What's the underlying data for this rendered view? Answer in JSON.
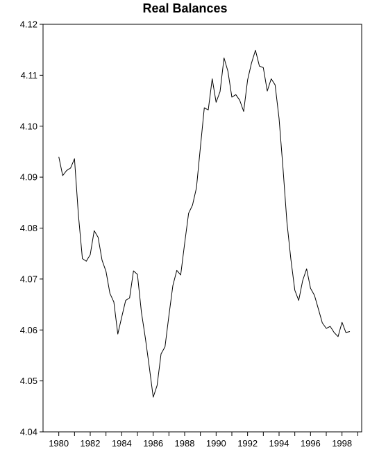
{
  "chart_data": {
    "type": "line",
    "title": "Real Balances",
    "xlabel": "",
    "ylabel": "",
    "xlim": [
      1979.0,
      1999.25
    ],
    "ylim": [
      4.04,
      4.12
    ],
    "y_ticks": [
      4.04,
      4.05,
      4.06,
      4.07,
      4.08,
      4.09,
      4.1,
      4.11,
      4.12
    ],
    "y_tick_labels": [
      "4.04",
      "4.05",
      "4.06",
      "4.07",
      "4.08",
      "4.09",
      "4.10",
      "4.11",
      "4.12"
    ],
    "x_tick_labels": [
      "1980",
      "1982",
      "1984",
      "1986",
      "1988",
      "1990",
      "1992",
      "1994",
      "1996",
      "1998"
    ],
    "x_tick_values": [
      1980,
      1982,
      1984,
      1986,
      1988,
      1990,
      1992,
      1994,
      1996,
      1998
    ],
    "grid": false,
    "series": [
      {
        "color": "#000000",
        "x": [
          1980.0,
          1980.25,
          1980.5,
          1980.75,
          1981.0,
          1981.25,
          1981.5,
          1981.75,
          1982.0,
          1982.25,
          1982.5,
          1982.75,
          1983.0,
          1983.25,
          1983.5,
          1983.75,
          1984.0,
          1984.25,
          1984.5,
          1984.75,
          1985.0,
          1985.25,
          1985.5,
          1985.75,
          1986.0,
          1986.25,
          1986.5,
          1986.75,
          1987.0,
          1987.25,
          1987.5,
          1987.75,
          1988.0,
          1988.25,
          1988.5,
          1988.75,
          1989.0,
          1989.25,
          1989.5,
          1989.75,
          1990.0,
          1990.25,
          1990.5,
          1990.75,
          1991.0,
          1991.25,
          1991.5,
          1991.75,
          1992.0,
          1992.25,
          1992.5,
          1992.75,
          1993.0,
          1993.25,
          1993.5,
          1993.75,
          1994.0,
          1994.25,
          1994.5,
          1994.75,
          1995.0,
          1995.25,
          1995.5,
          1995.75,
          1996.0,
          1996.25,
          1996.5,
          1996.75,
          1997.0,
          1997.25,
          1997.5,
          1997.75,
          1998.0,
          1998.25,
          1998.5
        ],
        "y": [
          4.094,
          4.0903,
          4.0913,
          4.0918,
          4.0936,
          4.0825,
          4.074,
          4.0735,
          4.0748,
          4.0795,
          4.0782,
          4.0737,
          4.0715,
          4.0672,
          4.0655,
          4.0592,
          4.0625,
          4.0658,
          4.0663,
          4.0716,
          4.0709,
          4.0635,
          4.0585,
          4.0528,
          4.0468,
          4.0491,
          4.0553,
          4.0567,
          4.0628,
          4.0687,
          4.0717,
          4.0708,
          4.077,
          4.0829,
          4.0845,
          4.0879,
          4.0959,
          4.1036,
          4.1032,
          4.1093,
          4.1047,
          4.1068,
          4.1134,
          4.1108,
          4.1057,
          4.1062,
          4.1051,
          4.1029,
          4.1091,
          4.1124,
          4.1149,
          4.1118,
          4.1115,
          4.1069,
          4.1093,
          4.1081,
          4.1015,
          4.0917,
          4.0812,
          4.0739,
          4.0678,
          4.0658,
          4.0697,
          4.072,
          4.0682,
          4.0668,
          4.0641,
          4.0614,
          4.0603,
          4.0607,
          4.0595,
          4.0587,
          4.0615,
          4.0595,
          4.0597
        ]
      }
    ]
  }
}
